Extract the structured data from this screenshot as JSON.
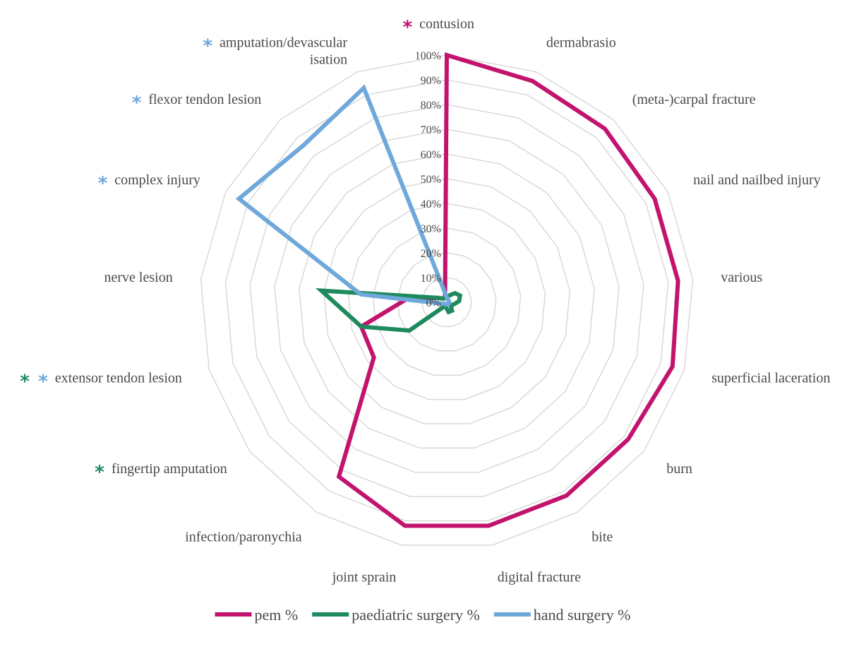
{
  "chart_data": {
    "type": "radar",
    "categories": [
      "contusion",
      "dermabrasio",
      "(meta-)carpal fracture",
      "nail and nailbed injury",
      "various",
      "superficial laceration",
      "burn",
      "bite",
      "digital fracture",
      "joint sprain",
      "infection/paronychia",
      "fingertip amputation",
      "extensor tendon lesion",
      "nerve lesion",
      "complex injury",
      "flexor tendon lesion",
      "amputation/devascular isation"
    ],
    "category_lines": {
      "16": [
        "amputation/devascular",
        "isation"
      ]
    },
    "r_ticks": [
      "0%",
      "10%",
      "20%",
      "30%",
      "40%",
      "50%",
      "60%",
      "70%",
      "80%",
      "90%",
      "100%"
    ],
    "r_range": [
      0,
      100
    ],
    "series": [
      {
        "name": "pem %",
        "color": "#C2136E",
        "values": [
          100,
          96,
          95,
          94,
          94,
          95,
          92,
          92,
          92,
          92,
          83,
          37,
          36,
          16,
          4,
          2,
          2
        ]
      },
      {
        "name": "paediatric surgery %",
        "color": "#1E8A5E",
        "values": [
          2,
          3,
          5,
          6,
          5,
          3,
          2,
          4,
          4,
          2,
          2,
          19,
          36,
          51,
          4,
          2,
          2
        ]
      },
      {
        "name": "hand surgery %",
        "color": "#6FA8DA",
        "values": [
          2,
          1,
          1,
          1,
          1,
          1,
          1,
          1,
          1,
          1,
          1,
          1,
          2,
          35,
          94,
          86,
          93
        ]
      }
    ],
    "significance_markers": [
      {
        "category": "contusion",
        "colors": [
          "#C2136E"
        ]
      },
      {
        "category": "amputation/devascular isation",
        "colors": [
          "#6FA8DA"
        ]
      },
      {
        "category": "flexor tendon lesion",
        "colors": [
          "#6FA8DA"
        ]
      },
      {
        "category": "complex injury",
        "colors": [
          "#6FA8DA"
        ]
      },
      {
        "category": "extensor tendon lesion",
        "colors": [
          "#1E8A5E",
          "#6FA8DA"
        ]
      },
      {
        "category": "fingertip amputation",
        "colors": [
          "#1E8A5E"
        ]
      }
    ],
    "marker_symbol": "*",
    "legend_position": "bottom",
    "grid": true,
    "grid_color": "#d9d9d9"
  }
}
